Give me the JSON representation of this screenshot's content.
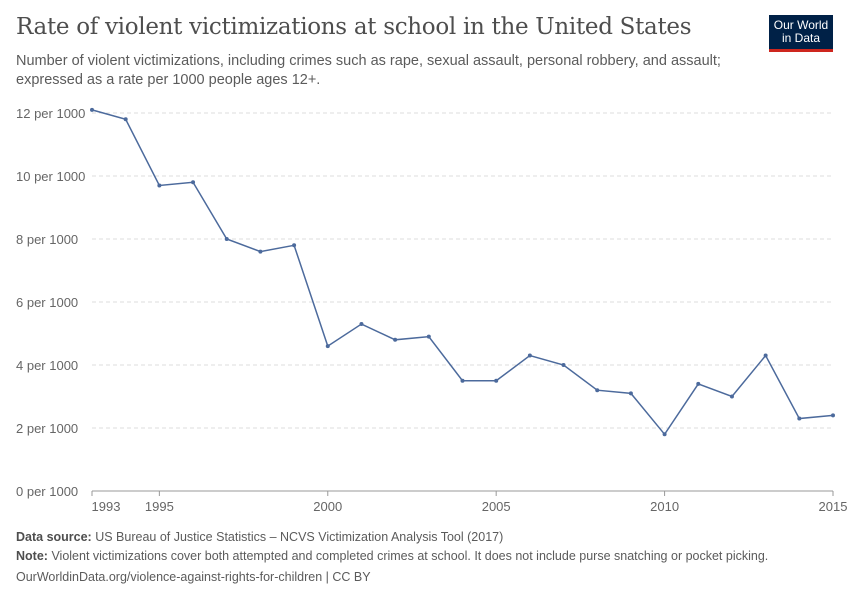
{
  "header": {
    "title": "Rate of violent victimizations at school in the United States",
    "subtitle": "Number of violent victimizations, including crimes such as rape, sexual assault, personal robbery, and assault; expressed as a rate per 1000 people ages 12+.",
    "logo": "Our World in Data"
  },
  "chart_data": {
    "type": "line",
    "title": "Rate of violent victimizations at school in the United States",
    "xlim": [
      1993,
      2015
    ],
    "ylim": [
      0,
      12
    ],
    "grid": true,
    "x": [
      1993,
      1994,
      1995,
      1996,
      1997,
      1998,
      1999,
      2000,
      2001,
      2002,
      2003,
      2004,
      2005,
      2006,
      2007,
      2008,
      2009,
      2010,
      2011,
      2012,
      2013,
      2014,
      2015
    ],
    "values": [
      12.1,
      11.8,
      9.7,
      9.8,
      8.0,
      7.6,
      7.8,
      4.6,
      5.3,
      4.8,
      4.9,
      3.5,
      3.5,
      4.3,
      4.0,
      3.2,
      3.1,
      1.8,
      3.4,
      3.0,
      4.3,
      2.3,
      2.4
    ],
    "yticks": [
      0,
      2,
      4,
      6,
      8,
      10,
      12
    ],
    "ytick_labels": [
      "0 per 1000",
      "2 per 1000",
      "4 per 1000",
      "6 per 1000",
      "8 per 1000",
      "10 per 1000",
      "12 per 1000"
    ],
    "xticks": [
      1993,
      1995,
      2000,
      2005,
      2010,
      2015
    ],
    "xtick_labels": [
      "1993",
      "1995",
      "2000",
      "2005",
      "2010",
      "2015"
    ],
    "color": "#4c6a9c"
  },
  "footer": {
    "source_label": "Data source:",
    "source": "US Bureau of Justice Statistics – NCVS Victimization Analysis Tool (2017)",
    "note_label": "Note:",
    "note": "Violent victimizations cover both attempted and completed crimes at school. It does not include purse snatching or pocket picking.",
    "url": "OurWorldinData.org/violence-against-rights-for-children | CC BY"
  }
}
